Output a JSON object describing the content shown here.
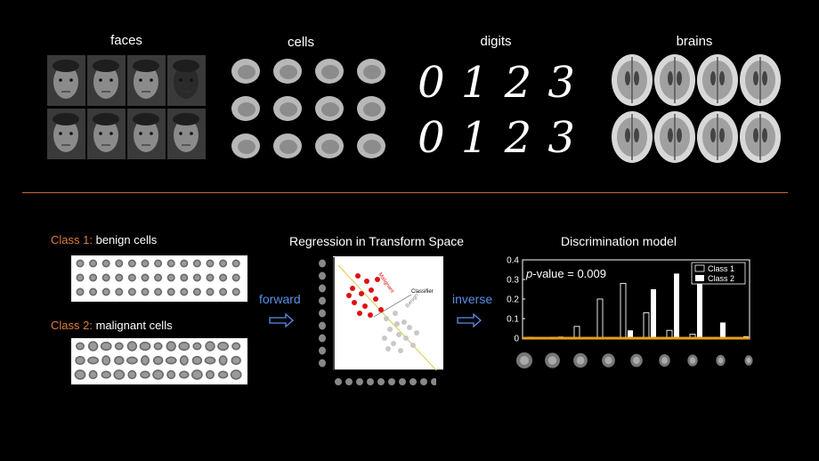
{
  "top_categories": [
    "faces",
    "cells",
    "digits",
    "brains"
  ],
  "digits": {
    "row1": [
      "0",
      "1",
      "2",
      "3"
    ],
    "row2": [
      "0",
      "1",
      "2",
      "3"
    ]
  },
  "class1": {
    "prefix": "Class 1:",
    "label": "benign cells"
  },
  "class2": {
    "prefix": "Class 2:",
    "label": "malignant cells"
  },
  "forward_label": "forward",
  "inverse_label": "inverse",
  "regression": {
    "title": "Regression in Transform Space",
    "label_malignant": "Malignant",
    "label_classifier": "Classifier",
    "label_benign": "Benign"
  },
  "discrimination": {
    "title": "Discrimination model",
    "pvalue_prefix": "p",
    "pvalue_text": "-value = 0.009",
    "legend": [
      "Class 1",
      "Class 2"
    ]
  },
  "colors": {
    "accent": "#e07a3f",
    "blue": "#5a8ee8",
    "baseline": "#e8a020",
    "red": "#e01010"
  },
  "chart_data": {
    "type": "bar",
    "ylim": [
      0,
      0.4
    ],
    "yticks": [
      "0.4",
      "0.3",
      "0.2",
      "0.1",
      "0"
    ],
    "series": [
      {
        "name": "Class 1",
        "values": [
          0.005,
          0.005,
          0.06,
          0.2,
          0.28,
          0.13,
          0.04,
          0.02,
          0.003
        ]
      },
      {
        "name": "Class 2",
        "values": [
          0.002,
          0.008,
          0.002,
          0.005,
          0.04,
          0.25,
          0.33,
          0.28,
          0.08,
          0.01
        ]
      }
    ]
  }
}
